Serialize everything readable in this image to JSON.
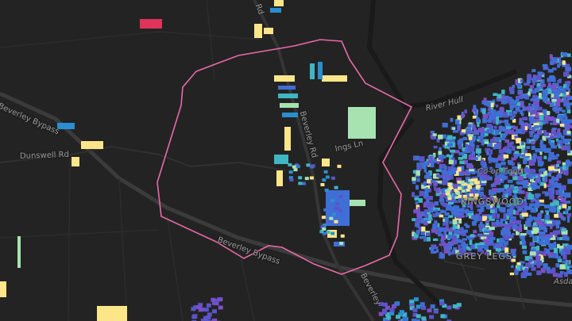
{
  "map": {
    "road_labels": [
      "Beverley Bypass",
      "Beverley Bypass",
      "Dunswell Rd",
      "Beverley Rd",
      "Beverley Rd",
      "Ings Ln",
      "Beverley",
      "Rd"
    ],
    "water_labels": [
      "River Hull"
    ],
    "poi_labels": [
      "Co-op Food",
      "Asda"
    ],
    "place_labels": [
      "KINGSWOOD",
      "GREY LEGS"
    ],
    "colors": {
      "background": "#232323",
      "road": "#3a3a3a",
      "boundary": "#e86aa8",
      "palette": [
        "#fde68a",
        "#a7e3b0",
        "#3fb6c4",
        "#2a8fd0",
        "#3f6fd6",
        "#5a55c9",
        "#7b4fc9",
        "#e0335a"
      ]
    }
  }
}
